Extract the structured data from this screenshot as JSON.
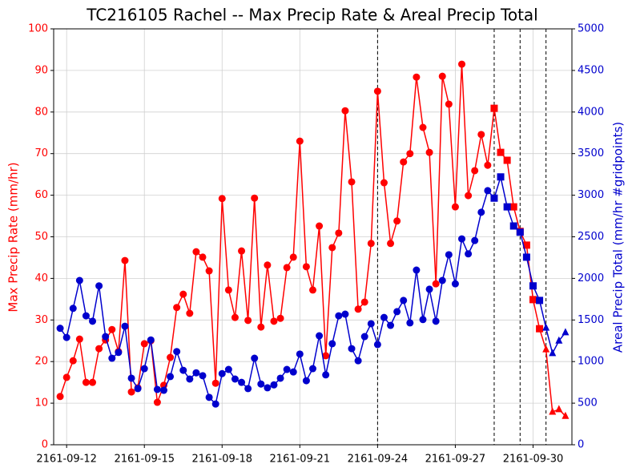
{
  "chart_data": {
    "type": "line",
    "title": "TC216105 Rachel -- Max Precip Rate & Areal Precip Total",
    "ylabel": "Max Precip Rate (mm/hr)",
    "y2label": "Areal Precip Total (mm/hr #gridpoints)",
    "categories": [
      null,
      "2161-09-12",
      null,
      null,
      null,
      null,
      null,
      null,
      null,
      null,
      null,
      null,
      null,
      "2161-09-15",
      null,
      null,
      null,
      null,
      null,
      null,
      null,
      null,
      null,
      null,
      null,
      "2161-09-18",
      null,
      null,
      null,
      null,
      null,
      null,
      null,
      null,
      null,
      null,
      null,
      "2161-09-21",
      null,
      null,
      null,
      null,
      null,
      null,
      null,
      null,
      null,
      null,
      null,
      "2161-09-24",
      null,
      null,
      null,
      null,
      null,
      null,
      null,
      null,
      null,
      null,
      null,
      "2161-09-27",
      null,
      null,
      null,
      null,
      null,
      null,
      null,
      null,
      null,
      null,
      null,
      "2161-09-30",
      null,
      null,
      null,
      null,
      null
    ],
    "series": [
      {
        "color": "#ff0000",
        "axis": "y",
        "values": [
          11.6,
          16.2,
          20.2,
          25.4,
          15,
          15,
          23.1,
          25.2,
          27.7,
          22.4,
          44.3,
          12.7,
          13.7,
          24.3,
          25,
          10.2,
          14.3,
          21,
          33,
          36.2,
          31.6,
          46.4,
          45.1,
          41.8,
          14.8,
          59.2,
          37.2,
          30.6,
          46.6,
          29.9,
          59.3,
          28.3,
          43.2,
          29.7,
          30.4,
          42.6,
          45.1,
          73,
          42.8,
          37.2,
          52.6,
          21.4,
          47.4,
          50.9,
          80.3,
          63.2,
          32.6,
          34.3,
          48.4,
          85,
          63,
          48.4,
          53.8,
          68,
          70,
          88.4,
          76.3,
          70.3,
          38.7,
          88.6,
          81.9,
          57.2,
          91.5,
          59.9,
          65.9,
          74.6,
          67.2,
          80.9,
          70.3,
          68.4,
          57.2,
          51.3,
          48,
          34.9,
          27.9,
          22.9,
          7.9,
          8.5,
          6.9
        ]
      },
      {
        "color": "#0000cd",
        "axis": "y2",
        "values": [
          1400,
          1290,
          1640,
          1975,
          1550,
          1485,
          1910,
          1300,
          1040,
          1110,
          1425,
          800,
          675,
          915,
          1260,
          665,
          655,
          820,
          1120,
          895,
          790,
          865,
          830,
          570,
          490,
          855,
          905,
          790,
          750,
          675,
          1040,
          730,
          685,
          720,
          800,
          905,
          875,
          1090,
          770,
          915,
          1310,
          840,
          1215,
          1550,
          1570,
          1155,
          1010,
          1300,
          1455,
          1205,
          1530,
          1435,
          1600,
          1735,
          1465,
          2100,
          1505,
          1870,
          1485,
          1975,
          2285,
          1935,
          2475,
          2295,
          2455,
          2795,
          3055,
          2965,
          3220,
          2860,
          2630,
          2555,
          2255,
          1910,
          1735,
          1405,
          1100,
          1250,
          1350
        ]
      }
    ],
    "markers": [
      {
        "from": 0,
        "shape": "circle"
      },
      {
        "from": 67,
        "shape": "square"
      },
      {
        "from": 75,
        "shape": "triangle"
      }
    ],
    "vlines": [
      49,
      67,
      71,
      75
    ],
    "ylim": [
      0,
      100
    ],
    "yticks": [
      0,
      10,
      20,
      30,
      40,
      50,
      60,
      70,
      80,
      90,
      100
    ],
    "y2lim": [
      0,
      5000
    ],
    "y2ticks": [
      0,
      500,
      1000,
      1500,
      2000,
      2500,
      3000,
      3500,
      4000,
      4500,
      5000
    ],
    "grid": true
  }
}
